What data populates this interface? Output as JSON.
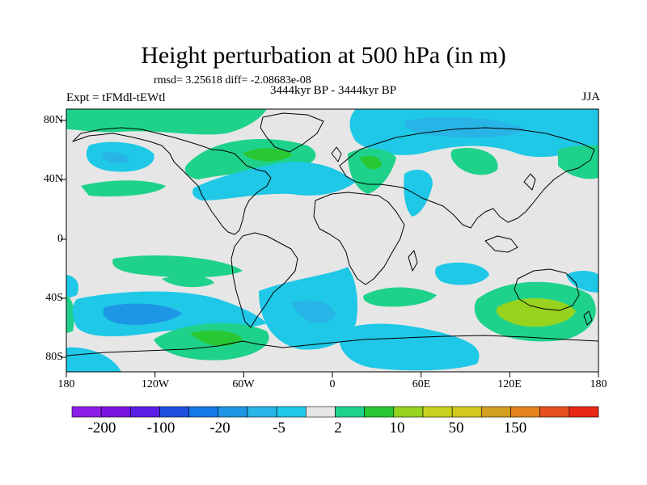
{
  "title": "Height perturbation at 500 hPa (in m)",
  "stats": "rmsd= 3.25618 diff= -2.08683e-08",
  "subtitle": "3444kyr BP - 3444kyr BP",
  "expt": "Expt = tFMdl-tEWtl",
  "season": "JJA",
  "lat_labels": [
    "80N",
    "40N",
    "0",
    "40S",
    "80S"
  ],
  "lon_labels": [
    "180",
    "120W",
    "60W",
    "0",
    "60E",
    "120E",
    "180"
  ],
  "colorbar": {
    "labels": [
      "-200",
      "-100",
      "-20",
      "-5",
      "2",
      "10",
      "50",
      "150"
    ],
    "colors": [
      "#8c1ee8",
      "#7a14e0",
      "#5a1ee6",
      "#1f4fe0",
      "#1478e6",
      "#1e96e6",
      "#28b4e6",
      "#1ec8e6",
      "#e6e6e6",
      "#1ed28c",
      "#28c832",
      "#96d21e",
      "#c8d21e",
      "#d2c81e",
      "#d2a01e",
      "#e6821e",
      "#e6501e",
      "#e62814"
    ]
  },
  "map_colors": {
    "neutral": "#e6e6e6",
    "light_blue": "#1ec8e6",
    "blue": "#28b4e6",
    "mid_blue": "#1e96e6",
    "teal_green": "#1ed28c",
    "green": "#28c832",
    "yellow_green": "#96d21e"
  }
}
